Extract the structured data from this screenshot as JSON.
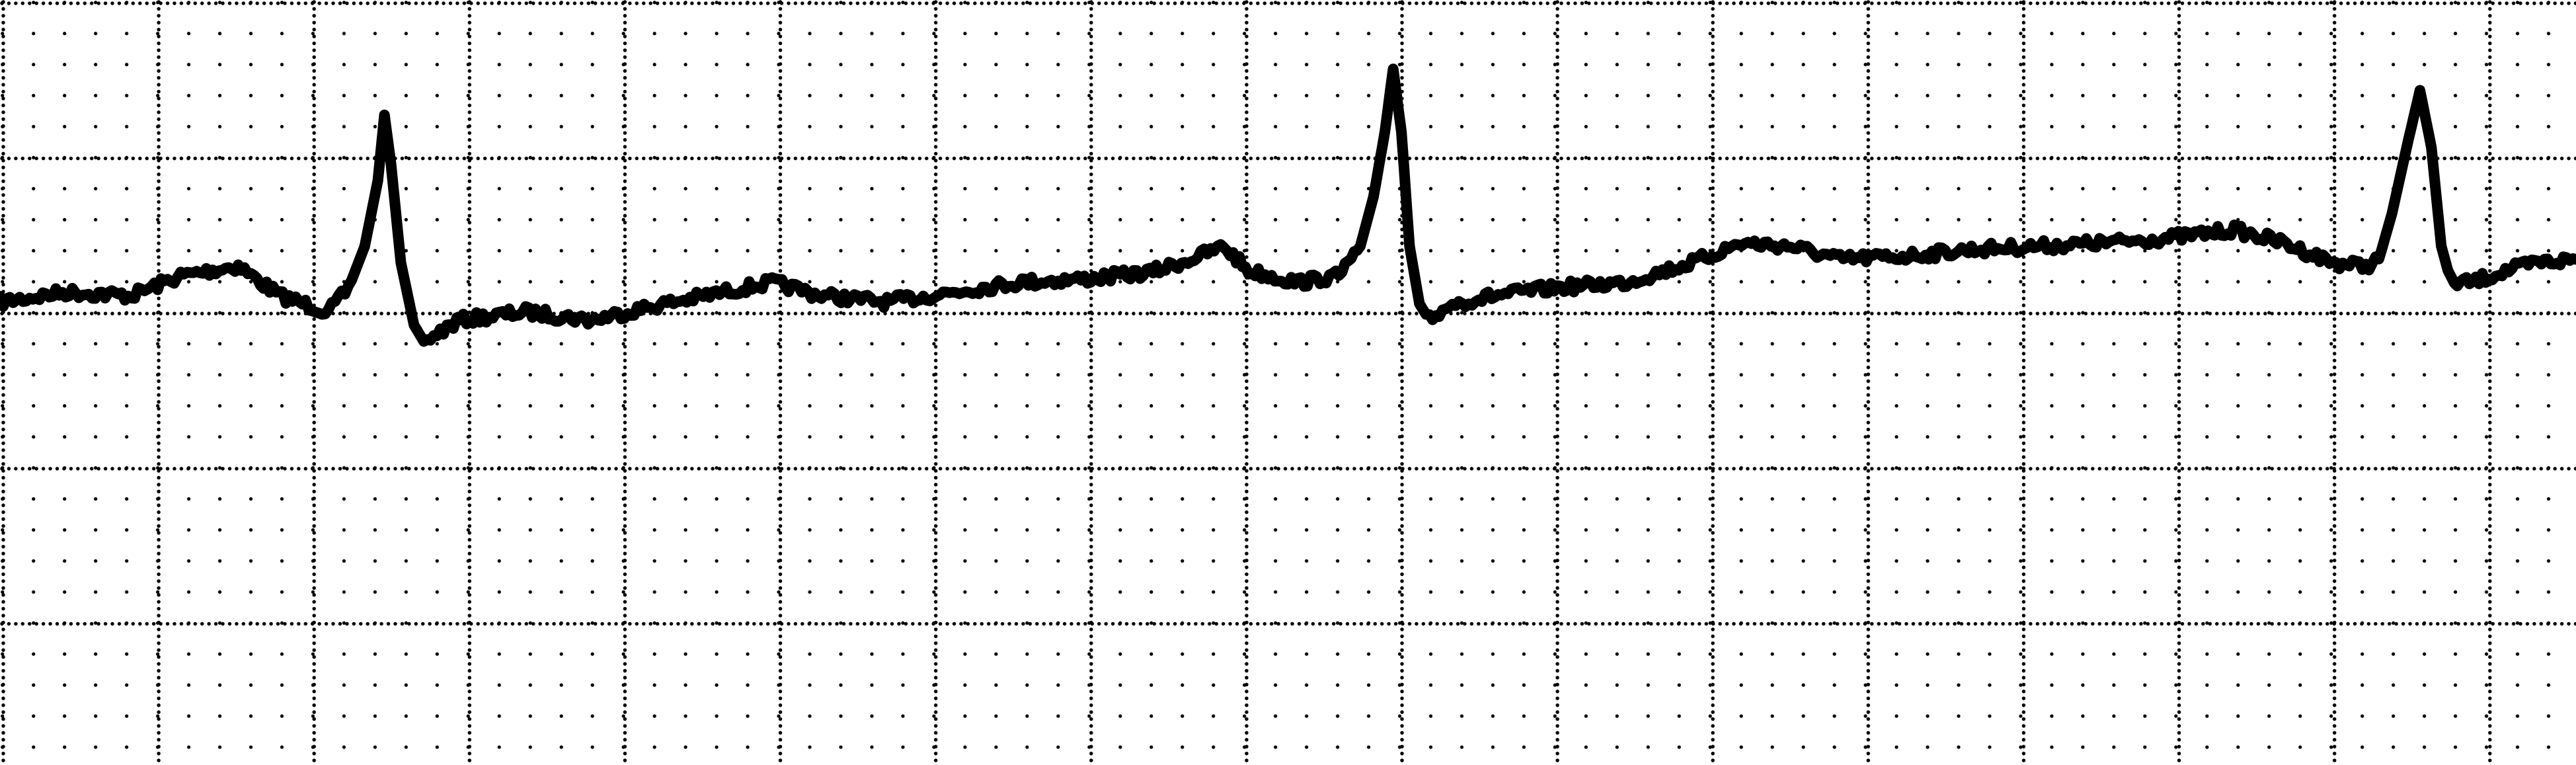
{
  "strip": {
    "paper_color": "#ffffff",
    "ink_color": "#000000",
    "grid_color": "#000000",
    "grid_style": "dotted",
    "beats_visible": 3,
    "printed_text": []
  }
}
